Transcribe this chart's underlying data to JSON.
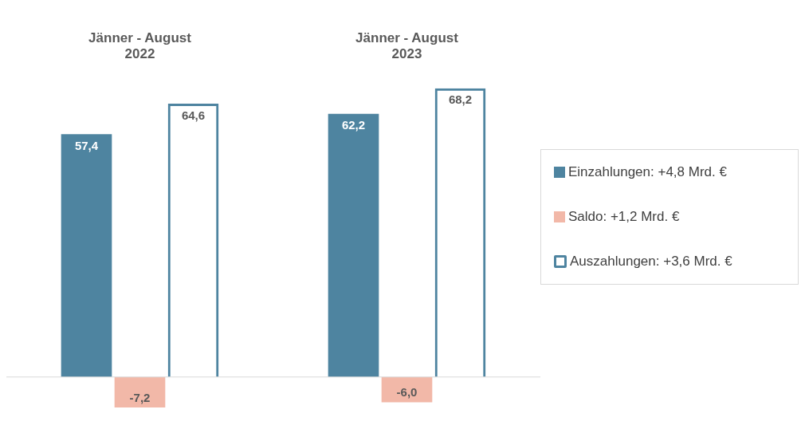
{
  "chart_data": {
    "type": "bar",
    "categories": [
      "Jänner - August 2022",
      "Jänner - August 2023"
    ],
    "series": [
      {
        "name": "Einzahlungen: +4,8 Mrd. €",
        "color": "#4e84a0",
        "values": [
          57.4,
          62.2
        ],
        "value_labels": [
          "57,4",
          "62,2"
        ]
      },
      {
        "name": "Saldo: +1,2 Mrd. €",
        "color": "#f2b8a8",
        "values": [
          -7.2,
          -6.0
        ],
        "value_labels": [
          "-7,2",
          "-6,0"
        ]
      },
      {
        "name": "Auszahlungen: +3,6 Mrd. €",
        "color": "#4e84a0",
        "values": [
          64.6,
          68.2
        ],
        "value_labels": [
          "64,6",
          "68,2"
        ]
      }
    ],
    "legend": "right",
    "grid": false
  }
}
